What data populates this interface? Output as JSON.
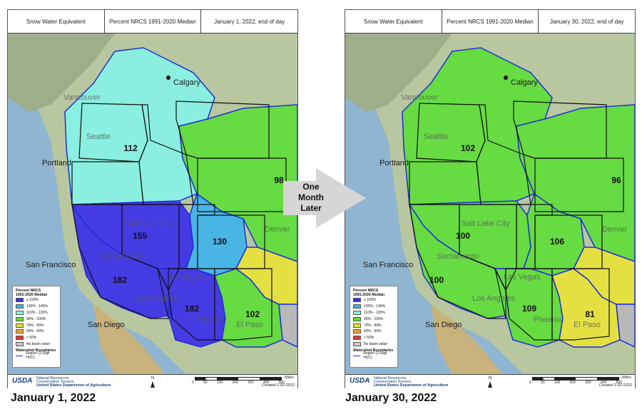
{
  "panels": [
    {
      "id": "left",
      "header": [
        "Snow Water Equivalent",
        "Percent NRCS 1991-2020 Median",
        "January 1, 2022, end of day"
      ],
      "caption": "January 1, 2022",
      "region_values": {
        "pacific_nw": "112",
        "missouri": "98",
        "great_basin": "155",
        "california": "182",
        "upper_colorado": "130",
        "lower_colorado": "182",
        "rio_grande": "102"
      },
      "region_colors": {
        "pacific_nw": "#86f2e5",
        "missouri": "#5fdc3a",
        "great_basin": "#3b2fe8",
        "california": "#3b2fe8",
        "upper_colorado": "#3fb3ea",
        "lower_colorado": "#3b2fe8",
        "rio_grande": "#5fdc3a",
        "arkansas": "#e8e23a",
        "texas": "#b9b9b9"
      }
    },
    {
      "id": "right",
      "header": [
        "Snow Water Equivalent",
        "Percent NRCS 1991-2020 Median",
        "January 30, 2022, end of day"
      ],
      "caption": "January 30, 2022",
      "region_values": {
        "pacific_nw": "102",
        "missouri": "96",
        "great_basin": "100",
        "california": "100",
        "upper_colorado": "106",
        "lower_colorado": "109",
        "rio_grande": "81"
      },
      "region_colors": {
        "pacific_nw": "#5fdc3a",
        "missouri": "#5fdc3a",
        "great_basin": "#5fdc3a",
        "california": "#5fdc3a",
        "upper_colorado": "#5fdc3a",
        "lower_colorado": "#5fdc3a",
        "rio_grande": "#e8e23a",
        "arkansas": "#e8e23a",
        "texas": "#b9b9b9"
      }
    }
  ],
  "cities": {
    "calgary": "Calgary",
    "vancouver": "Vancouver",
    "seattle": "Seattle",
    "portland": "Portland",
    "salt_lake": "Salt Lake City",
    "denver": "Denver",
    "san_francisco": "San Francisco",
    "sacramento": "Sacramento",
    "las_vegas": "Las Vegas",
    "los_angeles": "Los Angeles",
    "phoenix": "Phoenix",
    "el_paso": "El Paso",
    "san_diego": "San Diego"
  },
  "legend": {
    "title_line1": "Percent NRCS",
    "title_line2": "1991-2020 Median",
    "items": [
      {
        "label": "≥ 150%",
        "color": "#3b2fe8"
      },
      {
        "label": "130% - 149%",
        "color": "#3fb3ea"
      },
      {
        "label": "110% - 129%",
        "color": "#86f2e5"
      },
      {
        "label": "90% - 109%",
        "color": "#5fdc3a"
      },
      {
        "label": "70% - 89%",
        "color": "#e8e23a"
      },
      {
        "label": "50% - 69%",
        "color": "#f0a030"
      },
      {
        "label": "< 50%",
        "color": "#e03a2a"
      },
      {
        "label": "No basin value",
        "color": "#c9c9c9"
      }
    ],
    "boundaries_title": "Watershed Boundaries",
    "boundaries_item": "Region (2-Digit HUC)"
  },
  "footer": {
    "usda": "USDA",
    "agency_line1": "Natural Resources",
    "agency_line2": "Conservation Service",
    "agency_line3": "United States Department of Agriculture",
    "north": "N",
    "scale_numbers": [
      "0",
      "50",
      "100",
      "200",
      "300",
      "400",
      "500"
    ],
    "scale_units": "Miles",
    "created": "Created 2-02-2022"
  },
  "arrow": {
    "line1": "One",
    "line2": "Month",
    "line3": "Later"
  }
}
